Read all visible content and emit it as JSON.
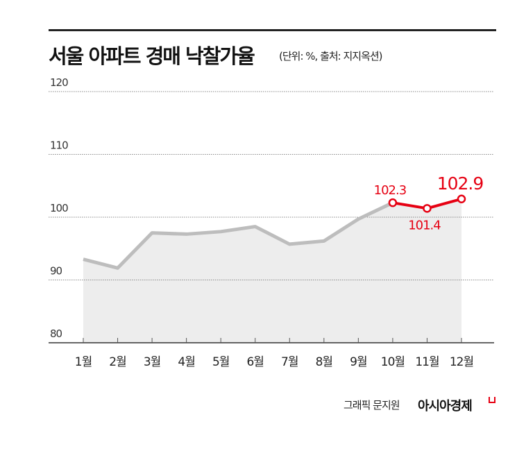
{
  "chart_data": {
    "type": "area",
    "title": "서울 아파트 경매 낙찰가율",
    "subtitle": "(단위: %, 출처: 지지옥션)",
    "categories": [
      "1월",
      "2월",
      "3월",
      "4월",
      "5월",
      "6월",
      "7월",
      "8월",
      "9월",
      "10월",
      "11월",
      "12월"
    ],
    "series": [
      {
        "values": [
          93.3,
          91.9,
          97.5,
          97.3,
          97.7,
          98.5,
          95.7,
          96.2,
          99.7,
          102.3,
          101.4,
          102.9
        ]
      }
    ],
    "data_labels": [
      {
        "index": 9,
        "text": "102.3"
      },
      {
        "index": 10,
        "text": "101.4"
      },
      {
        "index": 11,
        "text": "102.9"
      }
    ],
    "highlight_from_index": 9,
    "ylim": [
      80,
      120
    ],
    "yticks": [
      "80",
      "90",
      "100",
      "110",
      "120"
    ],
    "grid": true,
    "colors": {
      "line": "#bdbdbd",
      "fill": "#ededed",
      "highlight": "#e60012",
      "grid": "#888888"
    }
  },
  "footer": {
    "credit": "그래픽 문지원",
    "brand": "아시아경제"
  }
}
